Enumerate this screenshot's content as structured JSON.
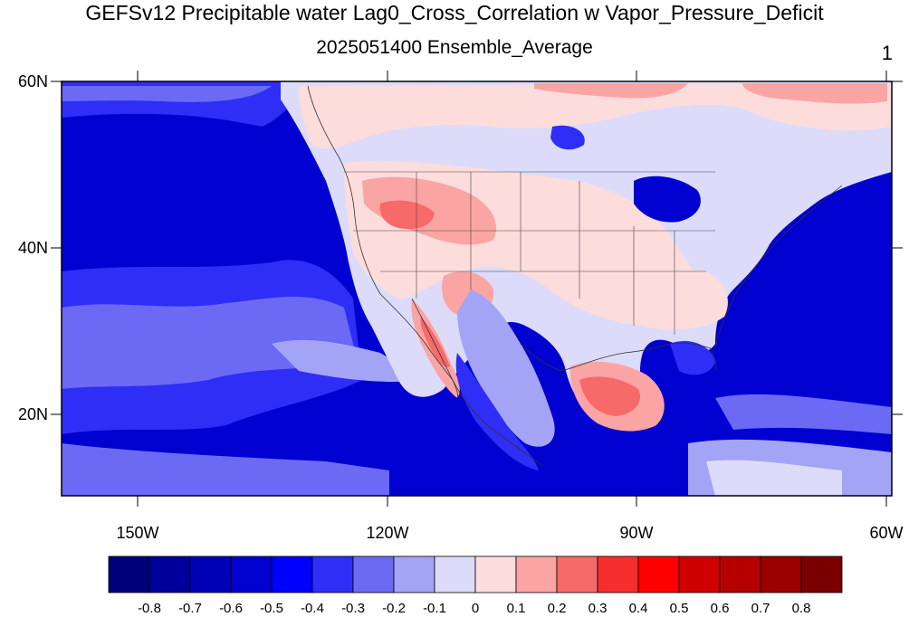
{
  "title": "GEFSv12 Precipitable water Lag0_Cross_Correlation w Vapor_Pressure_Deficit",
  "subtitle": "2025051400 Ensemble_Average",
  "corner_label": "1",
  "lat_labels": [
    "60N",
    "40N",
    "20N"
  ],
  "lon_labels": [
    "150W",
    "120W",
    "90W",
    "60W"
  ],
  "colorbar": {
    "labels": [
      "-0.8",
      "-0.7",
      "-0.6",
      "-0.5",
      "-0.4",
      "-0.3",
      "-0.2",
      "-0.1",
      "0",
      "0.1",
      "0.2",
      "0.3",
      "0.4",
      "0.5",
      "0.6",
      "0.7",
      "0.8"
    ],
    "colors": [
      "#00007a",
      "#00009a",
      "#0000b6",
      "#0000d0",
      "#0000ff",
      "#2e2ef7",
      "#6a6af5",
      "#a4a4f6",
      "#dcdcfa",
      "#fddcdc",
      "#fba4a4",
      "#f76a6a",
      "#f72e2e",
      "#ff0000",
      "#d00000",
      "#b60000",
      "#9a0000",
      "#7a0000"
    ]
  },
  "map_colors": {
    "ocean_deep": "#0000d0",
    "ocean_mid": "#2e2ef7",
    "ocean_light": "#6a6af5",
    "pale_blue": "#a4a4f6",
    "near_zero_blue": "#dcdcfa",
    "near_zero_red": "#fddcdc",
    "light_red": "#fba4a4",
    "mid_red": "#f76a6a"
  }
}
